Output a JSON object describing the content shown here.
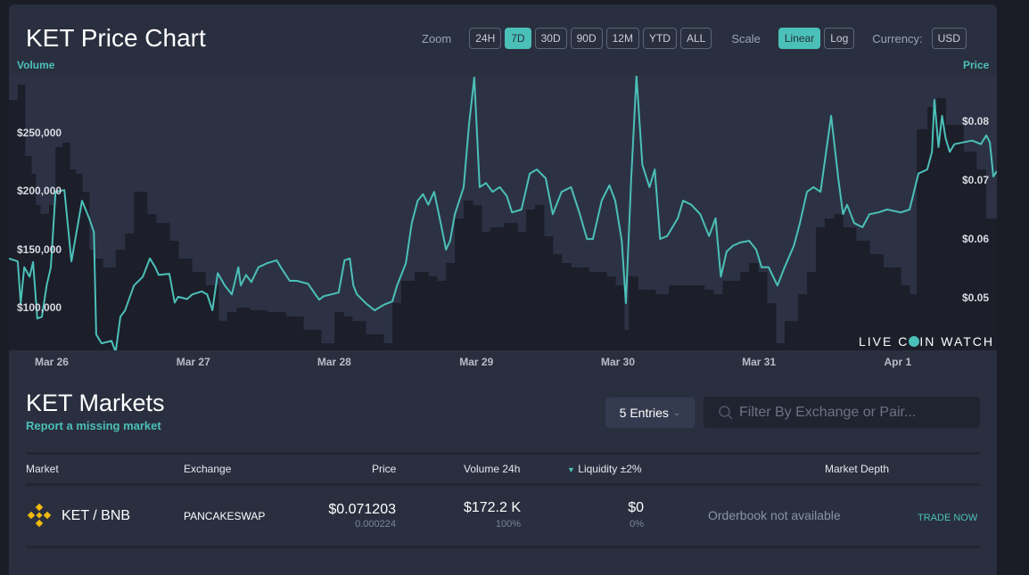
{
  "header": {
    "title": "KET Price Chart",
    "zoom_label": "Zoom",
    "zoom_options": [
      "24H",
      "7D",
      "30D",
      "90D",
      "12M",
      "YTD",
      "ALL"
    ],
    "zoom_selected": "7D",
    "scale_label": "Scale",
    "scale_options": [
      "Linear",
      "Log"
    ],
    "scale_selected": "Linear",
    "currency_label": "Currency:",
    "currency": "USD"
  },
  "chart_data": {
    "type": "line",
    "title": "KET Price Chart",
    "left_axis_label": "Volume",
    "right_axis_label": "Price",
    "x_unit": "hours since chart start (~Mar 25 17:00)",
    "x_range": [
      0,
      167.5
    ],
    "x_ticks": [
      {
        "label": "Mar 26",
        "t": 7.1
      },
      {
        "label": "Mar 27",
        "t": 31.1
      },
      {
        "label": "Mar 28",
        "t": 55.0
      },
      {
        "label": "Mar 29",
        "t": 79.1
      },
      {
        "label": "Mar 30",
        "t": 103.1
      },
      {
        "label": "Mar 31",
        "t": 127.0
      },
      {
        "label": "Apr 1",
        "t": 151.1
      }
    ],
    "volume_ylim": [
      63400,
      298500
    ],
    "volume_ticks": [
      {
        "label": "$100,000",
        "v": 100000
      },
      {
        "label": "$150,000",
        "v": 150000
      },
      {
        "label": "$200,000",
        "v": 200000
      },
      {
        "label": "$250,000",
        "v": 250000
      }
    ],
    "price_ylim": [
      0.0411,
      0.0877
    ],
    "price_ticks": [
      {
        "label": "$0.05",
        "v": 0.05
      },
      {
        "label": "$0.06",
        "v": 0.06
      },
      {
        "label": "$0.07",
        "v": 0.07
      },
      {
        "label": "$0.08",
        "v": 0.08
      }
    ],
    "colors": {
      "price_line": "#4bc0b8",
      "volume_bars": "#1c1e2a",
      "plot_bg": "#2c3244"
    },
    "volume_starts": [
      0,
      1.5,
      2.7,
      3.8,
      4.5,
      5.3,
      6.8,
      7.9,
      9.1,
      10.3,
      11.3,
      12.4,
      13.6,
      14.4,
      15.9,
      18.1,
      19.7,
      21.2,
      23.4,
      24.9,
      27.2,
      28.7,
      31.0,
      33.3,
      35.5,
      37.0,
      38.6,
      40.8,
      43.8,
      46.9,
      49.9,
      52.9,
      55.2,
      56.7,
      58.2,
      60.5,
      63.5,
      65.0,
      66.5,
      68.8,
      71.1,
      72.6,
      74.1,
      75.6,
      77.1,
      78.6,
      80.1,
      81.6,
      83.9,
      86.2,
      87.7,
      89.2,
      90.7,
      92.2,
      93.7,
      95.3,
      98.3,
      101.3,
      102.8,
      104.3,
      105.1,
      106.6,
      109.6,
      111.9,
      114.9,
      117.9,
      119.4,
      121.0,
      124.0,
      125.5,
      127.0,
      128.5,
      130.0,
      131.5,
      133.8,
      135.3,
      136.8,
      138.3,
      139.9,
      141.4,
      143.6,
      145.9,
      148.2,
      151.2,
      152.7,
      153.9,
      155.7,
      157.3,
      158.8,
      161.8,
      164.0,
      165.6
    ],
    "volume_values": [
      277800,
      290800,
      229800,
      214500,
      187800,
      180200,
      187800,
      237400,
      241200,
      218300,
      214500,
      199200,
      149600,
      142000,
      134400,
      149600,
      163400,
      199200,
      180200,
      172500,
      157300,
      142000,
      130500,
      119100,
      88500,
      96200,
      100000,
      97700,
      96200,
      92400,
      80900,
      69500,
      96200,
      92400,
      88500,
      77100,
      69500,
      103800,
      122900,
      130500,
      126700,
      122900,
      138200,
      176300,
      191600,
      187800,
      164900,
      168700,
      172500,
      164900,
      184000,
      187800,
      161100,
      145800,
      138200,
      134400,
      130500,
      126700,
      119100,
      80900,
      126700,
      115300,
      111500,
      119100,
      119100,
      115300,
      111500,
      122900,
      130500,
      138200,
      130500,
      103800,
      69500,
      88500,
      111500,
      130500,
      168700,
      176300,
      180200,
      168700,
      157300,
      145800,
      134400,
      119100,
      111500,
      252700,
      271800,
      279400,
      256500,
      233600,
      218300,
      176300
    ],
    "price": [
      [
        0,
        0.0567
      ],
      [
        1.5,
        0.0562
      ],
      [
        2.0,
        0.0491
      ],
      [
        2.6,
        0.0552
      ],
      [
        3.5,
        0.0536
      ],
      [
        4.1,
        0.0561
      ],
      [
        4.8,
        0.0465
      ],
      [
        5.6,
        0.0468
      ],
      [
        6.4,
        0.0521
      ],
      [
        7.1,
        0.0552
      ],
      [
        7.9,
        0.068
      ],
      [
        9.4,
        0.0683
      ],
      [
        10.6,
        0.0562
      ],
      [
        12.4,
        0.0665
      ],
      [
        13.6,
        0.0635
      ],
      [
        14.4,
        0.0612
      ],
      [
        14.8,
        0.0438
      ],
      [
        15.7,
        0.0423
      ],
      [
        17.4,
        0.0427
      ],
      [
        18.1,
        0.0408
      ],
      [
        18.9,
        0.0468
      ],
      [
        19.7,
        0.0479
      ],
      [
        21.2,
        0.0521
      ],
      [
        22.7,
        0.0536
      ],
      [
        23.9,
        0.0567
      ],
      [
        24.8,
        0.0552
      ],
      [
        25.4,
        0.0539
      ],
      [
        27.2,
        0.0541
      ],
      [
        28.1,
        0.0492
      ],
      [
        28.7,
        0.0502
      ],
      [
        30.2,
        0.0498
      ],
      [
        31.1,
        0.0506
      ],
      [
        32.7,
        0.0511
      ],
      [
        33.6,
        0.0506
      ],
      [
        34.5,
        0.0479
      ],
      [
        35.4,
        0.0542
      ],
      [
        36.6,
        0.0521
      ],
      [
        37.8,
        0.0506
      ],
      [
        38.9,
        0.0552
      ],
      [
        39.3,
        0.0521
      ],
      [
        40.2,
        0.0539
      ],
      [
        41.1,
        0.0527
      ],
      [
        42.3,
        0.0552
      ],
      [
        43.8,
        0.0559
      ],
      [
        45.4,
        0.0564
      ],
      [
        46.1,
        0.0552
      ],
      [
        47.6,
        0.0529
      ],
      [
        48.8,
        0.0529
      ],
      [
        50.7,
        0.0524
      ],
      [
        52.6,
        0.0497
      ],
      [
        53.4,
        0.0503
      ],
      [
        55.9,
        0.0509
      ],
      [
        56.9,
        0.0564
      ],
      [
        57.8,
        0.0567
      ],
      [
        58.4,
        0.0521
      ],
      [
        59.0,
        0.0506
      ],
      [
        60.5,
        0.0491
      ],
      [
        62.0,
        0.0479
      ],
      [
        63.5,
        0.0488
      ],
      [
        65.0,
        0.0494
      ],
      [
        65.8,
        0.0521
      ],
      [
        67.3,
        0.0559
      ],
      [
        68.3,
        0.0627
      ],
      [
        69.3,
        0.0665
      ],
      [
        70.2,
        0.0676
      ],
      [
        71.1,
        0.0658
      ],
      [
        72.1,
        0.068
      ],
      [
        72.9,
        0.0642
      ],
      [
        74.1,
        0.0582
      ],
      [
        74.8,
        0.0597
      ],
      [
        75.6,
        0.0642
      ],
      [
        77.1,
        0.0688
      ],
      [
        78.0,
        0.0794
      ],
      [
        78.9,
        0.0874
      ],
      [
        79.8,
        0.0688
      ],
      [
        80.9,
        0.0695
      ],
      [
        82.0,
        0.068
      ],
      [
        83.2,
        0.0688
      ],
      [
        84.4,
        0.0673
      ],
      [
        85.3,
        0.0645
      ],
      [
        86.9,
        0.065
      ],
      [
        88.3,
        0.0711
      ],
      [
        89.5,
        0.0718
      ],
      [
        91.0,
        0.0703
      ],
      [
        92.2,
        0.0642
      ],
      [
        93.7,
        0.068
      ],
      [
        95.3,
        0.0688
      ],
      [
        96.8,
        0.0642
      ],
      [
        98.0,
        0.06
      ],
      [
        99.0,
        0.06
      ],
      [
        100.5,
        0.0665
      ],
      [
        101.8,
        0.0691
      ],
      [
        102.8,
        0.0665
      ],
      [
        103.9,
        0.0597
      ],
      [
        104.6,
        0.0491
      ],
      [
        105.5,
        0.0703
      ],
      [
        106.4,
        0.0877
      ],
      [
        107.4,
        0.0726
      ],
      [
        108.6,
        0.0688
      ],
      [
        109.5,
        0.0718
      ],
      [
        110.4,
        0.06
      ],
      [
        111.6,
        0.0605
      ],
      [
        113.4,
        0.0635
      ],
      [
        114.3,
        0.0665
      ],
      [
        115.7,
        0.0658
      ],
      [
        117.2,
        0.0642
      ],
      [
        118.7,
        0.0605
      ],
      [
        119.8,
        0.0635
      ],
      [
        120.7,
        0.0536
      ],
      [
        121.7,
        0.0579
      ],
      [
        122.8,
        0.0589
      ],
      [
        124.0,
        0.0594
      ],
      [
        125.5,
        0.0597
      ],
      [
        126.7,
        0.0582
      ],
      [
        127.6,
        0.0552
      ],
      [
        128.8,
        0.0552
      ],
      [
        130.3,
        0.0521
      ],
      [
        131.5,
        0.0552
      ],
      [
        133.1,
        0.0589
      ],
      [
        134.1,
        0.0627
      ],
      [
        135.3,
        0.068
      ],
      [
        136.4,
        0.0688
      ],
      [
        137.6,
        0.068
      ],
      [
        139.4,
        0.0809
      ],
      [
        140.6,
        0.0703
      ],
      [
        141.4,
        0.0642
      ],
      [
        142.1,
        0.0658
      ],
      [
        143.3,
        0.0627
      ],
      [
        144.7,
        0.062
      ],
      [
        145.9,
        0.0642
      ],
      [
        147.4,
        0.0645
      ],
      [
        148.9,
        0.065
      ],
      [
        151.2,
        0.0645
      ],
      [
        152.7,
        0.065
      ],
      [
        154.2,
        0.0711
      ],
      [
        155.7,
        0.0718
      ],
      [
        156.5,
        0.0748
      ],
      [
        156.9,
        0.0836
      ],
      [
        157.6,
        0.0756
      ],
      [
        158.2,
        0.0809
      ],
      [
        158.8,
        0.0771
      ],
      [
        159.5,
        0.0748
      ],
      [
        160.3,
        0.0761
      ],
      [
        161.8,
        0.0764
      ],
      [
        163.3,
        0.0767
      ],
      [
        164.8,
        0.0761
      ],
      [
        165.7,
        0.0776
      ],
      [
        166.3,
        0.0764
      ],
      [
        166.9,
        0.0706
      ],
      [
        167.5,
        0.0715
      ]
    ],
    "watermark": "LIVE COIN WATCH"
  },
  "markets": {
    "title": "KET Markets",
    "report_link": "Report a missing market",
    "entries_label": "5 Entries",
    "filter_placeholder": "Filter By Exchange or Pair...",
    "columns": [
      "Market",
      "Exchange",
      "Price",
      "Volume 24h",
      "Liquidity ±2%",
      "Market Depth"
    ],
    "rows": [
      {
        "market": "KET / BNB",
        "exchange": "PANCAKESWAP",
        "price": "$0.071203",
        "price_sub": "0.000224",
        "volume": "$172.2 K",
        "volume_pct": "100%",
        "liquidity": "$0",
        "liquidity_pct": "0%",
        "depth": "Orderbook not available",
        "action": "TRADE NOW"
      }
    ]
  }
}
